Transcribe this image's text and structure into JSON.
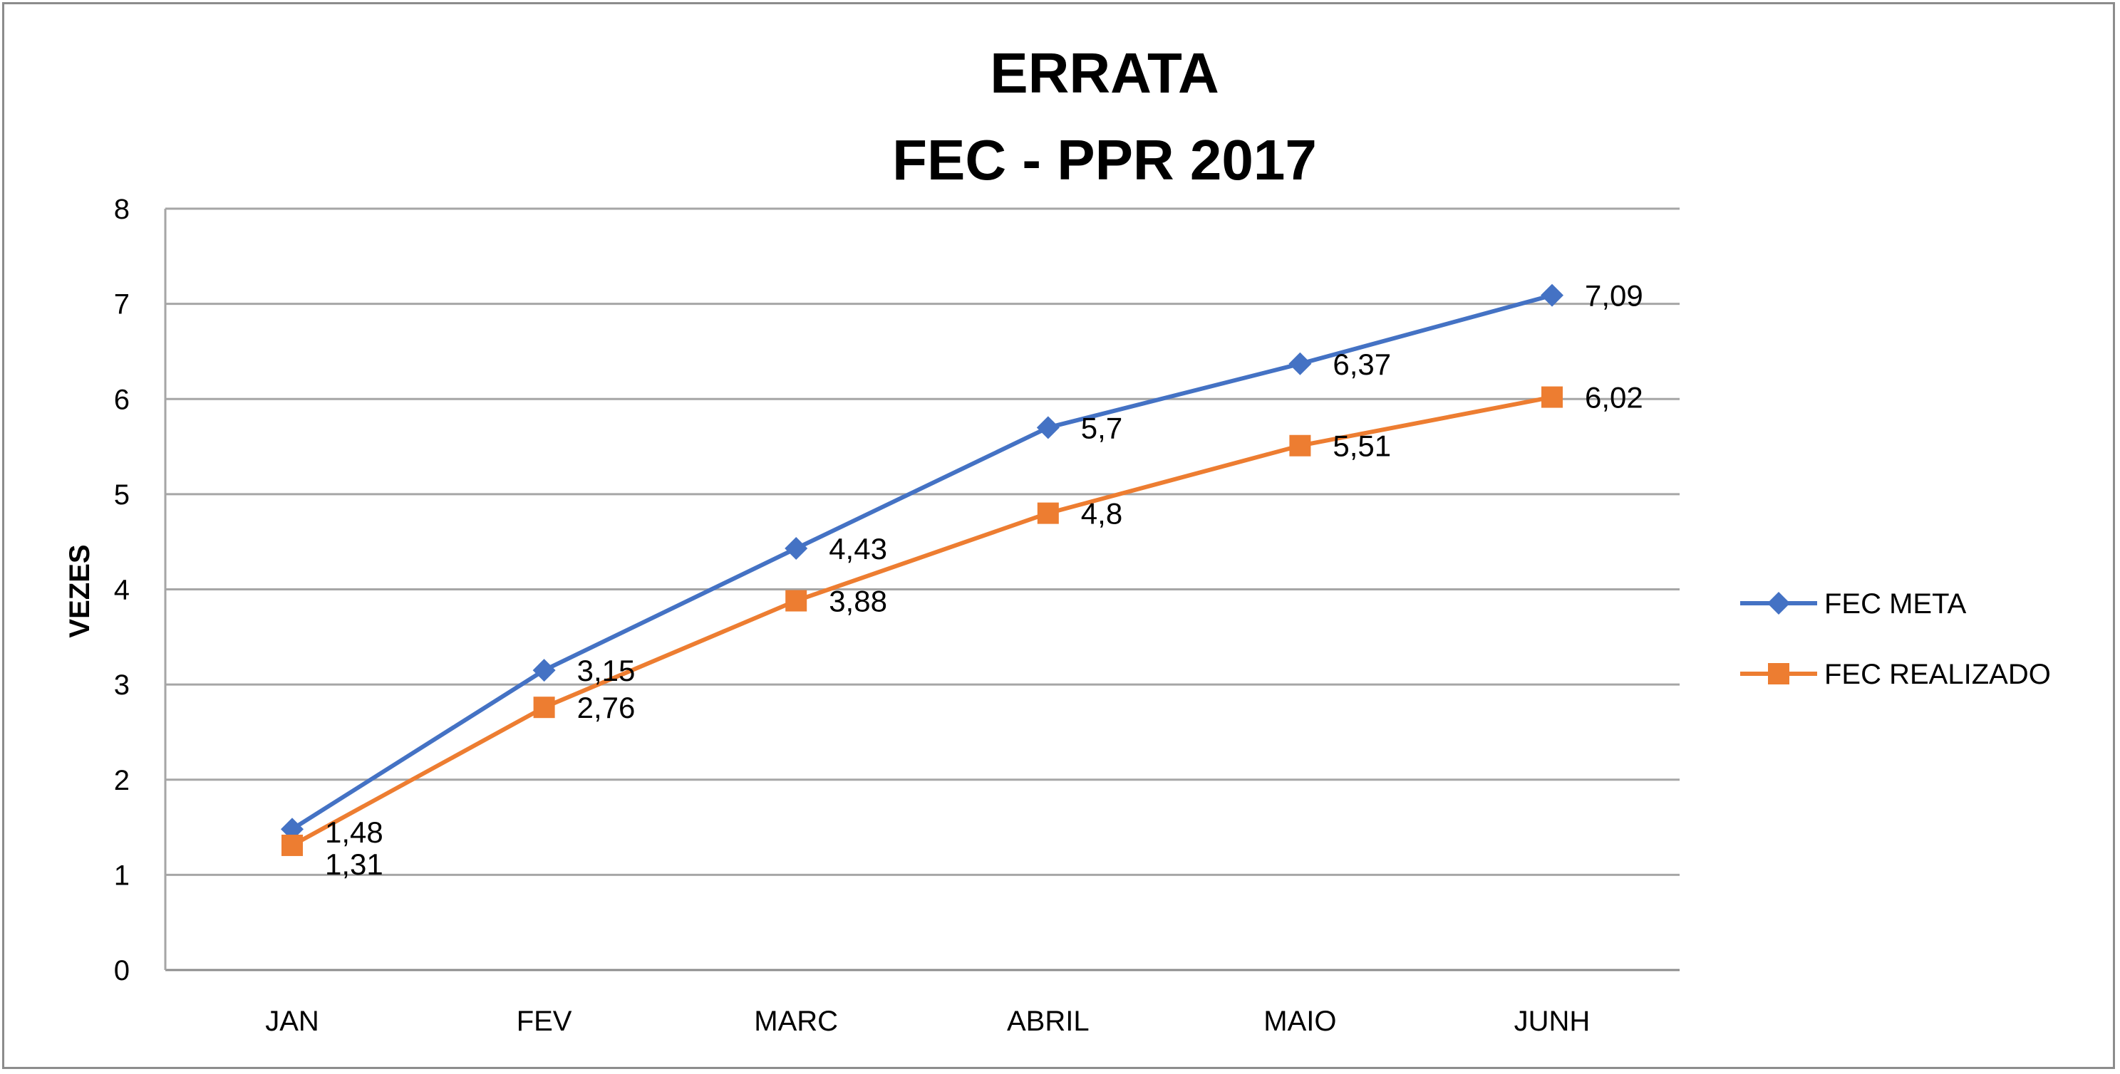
{
  "chart_data": {
    "type": "line",
    "title_lines": [
      "ERRATA",
      "FEC - PPR 2017"
    ],
    "xlabel": "",
    "ylabel": "VEZES",
    "categories": [
      "JAN",
      "FEV",
      "MARC",
      "ABRIL",
      "MAIO",
      "JUNH"
    ],
    "ylim": [
      0,
      8
    ],
    "yticks": [
      "0",
      "1",
      "2",
      "3",
      "4",
      "5",
      "6",
      "7",
      "8"
    ],
    "grid": true,
    "legend_position": "right",
    "series": [
      {
        "name": "FEC META",
        "values": [
          1.48,
          3.15,
          4.43,
          5.7,
          6.37,
          7.09
        ],
        "labels": [
          "1,48",
          "3,15",
          "4,43",
          "5,7",
          "6,37",
          "7,09"
        ],
        "color": "#4472c4",
        "marker": "diamond"
      },
      {
        "name": "FEC REALIZADO",
        "values": [
          1.31,
          2.76,
          3.88,
          4.8,
          5.51,
          6.02
        ],
        "labels": [
          "1,31",
          "2,76",
          "3,88",
          "4,8",
          "5,51",
          "6,02"
        ],
        "color": "#ed7d31",
        "marker": "square"
      }
    ]
  }
}
